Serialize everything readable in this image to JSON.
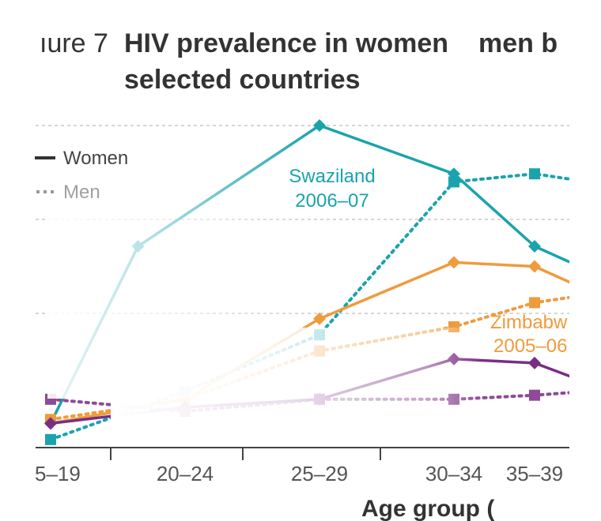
{
  "figure": {
    "label": "ıure 7",
    "title_line1": "HIV prevalence in women ",
    "title_frag": "men b",
    "title_line2": "selected countries"
  },
  "chart_data": {
    "type": "line",
    "xlabel": "Age group (",
    "categories": [
      "5–19",
      "20–24",
      "25–29",
      "30–34",
      "35–39"
    ],
    "category_x": [
      0,
      1,
      2,
      3,
      3.6
    ],
    "grid": true,
    "legend": {
      "placement": "top-left",
      "entries": [
        {
          "label": "Women",
          "style": "solid"
        },
        {
          "label": "Men",
          "style": "dotted"
        }
      ]
    },
    "series": [
      {
        "country": "Swaziland",
        "sex": "women",
        "color": "#1aa3ad",
        "points": [
          [
            0,
            3
          ],
          [
            0.65,
            25
          ],
          [
            2,
            40
          ],
          [
            3,
            34
          ],
          [
            3.6,
            25
          ],
          [
            4,
            22
          ]
        ]
      },
      {
        "country": "Swaziland",
        "sex": "men",
        "color": "#1aa3ad",
        "points": [
          [
            0,
            1
          ],
          [
            1,
            7
          ],
          [
            2,
            14
          ],
          [
            3,
            33
          ],
          [
            3.6,
            34
          ],
          [
            4,
            33
          ]
        ]
      },
      {
        "country": "Zimbabwe",
        "sex": "women",
        "color": "#ef9b3c",
        "points": [
          [
            0,
            3
          ],
          [
            1,
            6
          ],
          [
            2,
            16
          ],
          [
            3,
            23
          ],
          [
            3.6,
            22.5
          ],
          [
            4,
            19.5
          ]
        ]
      },
      {
        "country": "Zimbabwe",
        "sex": "men",
        "color": "#ef9b3c",
        "points": [
          [
            0,
            3.5
          ],
          [
            1,
            6
          ],
          [
            2,
            12
          ],
          [
            3,
            15
          ],
          [
            3.6,
            18
          ],
          [
            4,
            19
          ]
        ]
      },
      {
        "country": "",
        "sex": "women",
        "color": "#7a2e83",
        "points": [
          [
            0,
            3
          ],
          [
            1,
            5
          ],
          [
            2,
            6
          ],
          [
            3,
            11
          ],
          [
            3.6,
            10.5
          ],
          [
            4,
            8
          ]
        ]
      },
      {
        "country": "",
        "sex": "men",
        "color": "#8e4a97",
        "points": [
          [
            0,
            6
          ],
          [
            1,
            4.5
          ],
          [
            2,
            6
          ],
          [
            3,
            6
          ],
          [
            3.6,
            6.5
          ],
          [
            4,
            7
          ]
        ]
      }
    ],
    "annotations": [
      {
        "text_line1": "Swaziland",
        "text_line2": "2006–07",
        "color": "#1aa3ad"
      },
      {
        "text_line1": "Zimbabw",
        "text_line2": "2005–06",
        "color": "#ef9b3c"
      }
    ]
  }
}
